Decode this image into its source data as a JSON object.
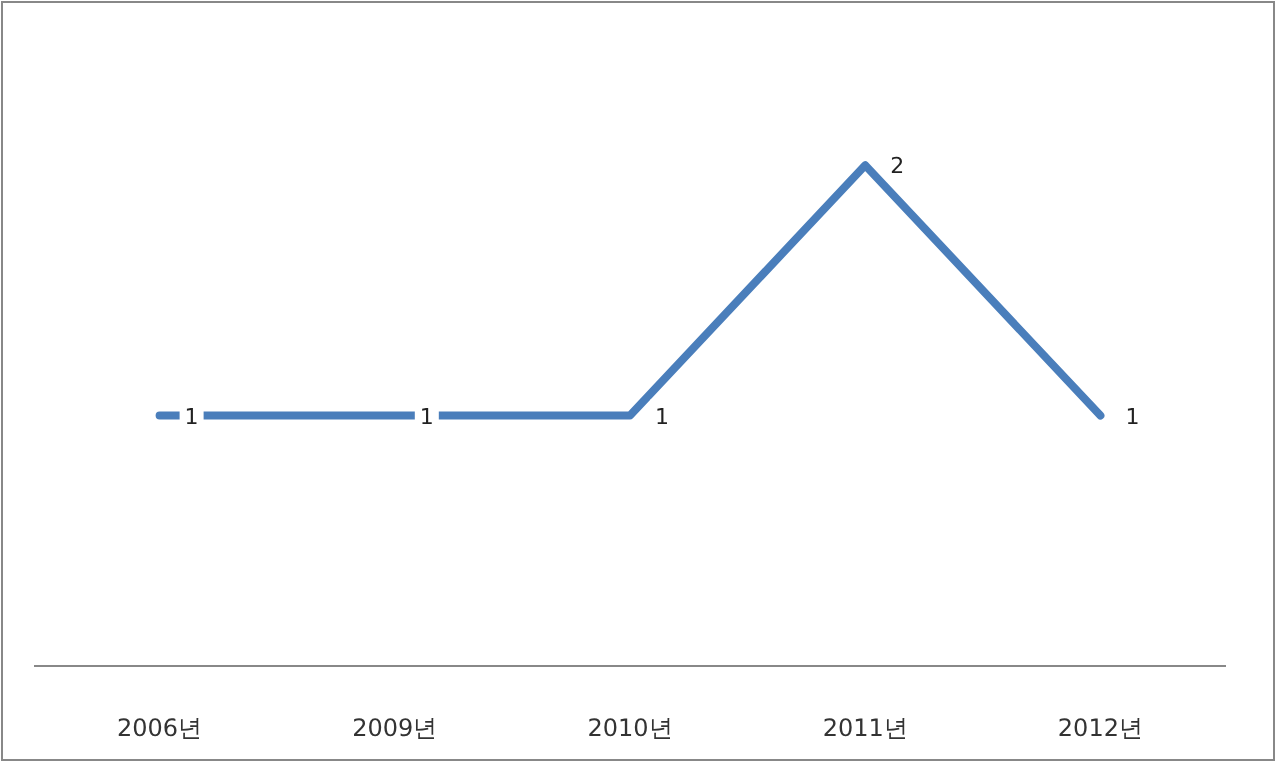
{
  "chart_data": {
    "type": "line",
    "categories": [
      "2006년",
      "2009년",
      "2010년",
      "2011년",
      "2012년"
    ],
    "series": [
      {
        "color": "#4a7ebb",
        "values": [
          1,
          1,
          1,
          2,
          1
        ]
      }
    ],
    "data_labels": true,
    "marker": "none",
    "line_style": "solid"
  }
}
